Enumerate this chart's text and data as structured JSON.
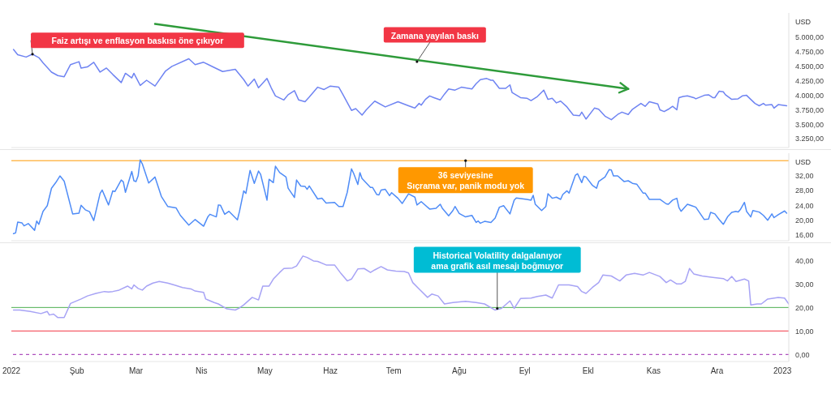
{
  "chart_data": [
    {
      "type": "line",
      "ylabel": "USD",
      "tick_labels": "y",
      "xlim": [
        "2022-01-01",
        "2023-01-04"
      ],
      "ylim": [
        3100,
        5420
      ],
      "yticks": [
        {
          "value": 3250,
          "label": "3.250,00"
        },
        {
          "value": 3500,
          "label": "3.500,00"
        },
        {
          "value": 3750,
          "label": "3.750,00"
        },
        {
          "value": 4000,
          "label": "4.000,00"
        },
        {
          "value": 4250,
          "label": "4.250,00"
        },
        {
          "value": 4500,
          "label": "4.500,00"
        },
        {
          "value": 4750,
          "label": "4.750,00"
        },
        {
          "value": 5000,
          "label": "5.000,00"
        }
      ],
      "series": [
        {
          "color": "#6f84f2",
          "x": [
            "2022-01-02",
            "2022-01-04",
            "2022-01-08",
            "2022-01-11",
            "2022-01-14",
            "2022-01-16",
            "2022-01-20",
            "2022-01-23",
            "2022-01-26",
            "2022-01-29",
            "2022-02-02",
            "2022-02-03",
            "2022-02-06",
            "2022-02-09",
            "2022-02-12",
            "2022-02-15",
            "2022-02-18",
            "2022-02-22",
            "2022-02-24",
            "2022-02-27",
            "2022-02-28",
            "2022-03-03",
            "2022-03-06",
            "2022-03-10",
            "2022-03-15",
            "2022-03-18",
            "2022-03-26",
            "2022-03-29",
            "2022-04-02",
            "2022-04-07",
            "2022-04-11",
            "2022-04-17",
            "2022-04-21",
            "2022-04-23",
            "2022-04-26",
            "2022-04-28",
            "2022-05-02",
            "2022-05-04",
            "2022-05-06",
            "2022-05-10",
            "2022-05-12",
            "2022-05-15",
            "2022-05-17",
            "2022-05-20",
            "2022-05-22",
            "2022-05-26",
            "2022-05-29",
            "2022-06-01",
            "2022-06-05",
            "2022-06-07",
            "2022-06-11",
            "2022-06-13",
            "2022-06-16",
            "2022-06-18",
            "2022-06-22",
            "2022-06-27",
            "2022-07-03",
            "2022-07-08",
            "2022-07-11",
            "2022-07-13",
            "2022-07-14",
            "2022-07-16",
            "2022-07-18",
            "2022-07-20",
            "2022-07-23",
            "2022-07-25",
            "2022-07-27",
            "2022-07-30",
            "2022-08-02",
            "2022-08-07",
            "2022-08-09",
            "2022-08-11",
            "2022-08-14",
            "2022-08-16",
            "2022-08-17",
            "2022-08-20",
            "2022-08-23",
            "2022-08-25",
            "2022-08-26",
            "2022-08-30",
            "2022-09-02",
            "2022-09-04",
            "2022-09-07",
            "2022-09-10",
            "2022-09-12",
            "2022-09-14",
            "2022-09-16",
            "2022-09-18",
            "2022-09-21",
            "2022-09-24",
            "2022-09-27",
            "2022-09-28",
            "2022-09-30",
            "2022-10-04",
            "2022-10-06",
            "2022-10-09",
            "2022-10-12",
            "2022-10-15",
            "2022-10-17",
            "2022-10-20",
            "2022-10-22",
            "2022-10-26",
            "2022-10-28",
            "2022-10-30",
            "2022-11-03",
            "2022-11-04",
            "2022-11-06",
            "2022-11-08",
            "2022-11-10",
            "2022-11-12",
            "2022-11-13",
            "2022-11-15",
            "2022-11-17",
            "2022-11-20",
            "2022-11-21",
            "2022-11-25",
            "2022-11-27",
            "2022-11-29",
            "2022-11-30",
            "2022-12-02",
            "2022-12-04",
            "2022-12-05",
            "2022-12-08",
            "2022-12-11",
            "2022-12-13",
            "2022-12-15",
            "2022-12-17",
            "2022-12-19",
            "2022-12-21",
            "2022-12-23",
            "2022-12-24",
            "2022-12-27",
            "2022-12-28",
            "2022-12-30",
            "2023-01-03"
          ],
          "values": [
            4790,
            4700,
            4660,
            4710,
            4650,
            4560,
            4400,
            4340,
            4320,
            4530,
            4580,
            4470,
            4490,
            4570,
            4400,
            4470,
            4360,
            4220,
            4380,
            4300,
            4380,
            4170,
            4260,
            4160,
            4420,
            4500,
            4630,
            4530,
            4570,
            4480,
            4410,
            4450,
            4270,
            4160,
            4280,
            4130,
            4290,
            4130,
            3990,
            3920,
            4010,
            4080,
            3920,
            3890,
            3970,
            4140,
            4100,
            4160,
            4140,
            4010,
            3740,
            3770,
            3660,
            3750,
            3900,
            3800,
            3890,
            3820,
            3780,
            3860,
            3830,
            3930,
            3990,
            3960,
            3920,
            4020,
            4110,
            4090,
            4140,
            4110,
            4200,
            4270,
            4290,
            4260,
            4260,
            4120,
            4120,
            4180,
            4050,
            3960,
            3950,
            3910,
            3980,
            4090,
            3930,
            3950,
            3870,
            3900,
            3800,
            3660,
            3650,
            3710,
            3590,
            3780,
            3760,
            3640,
            3580,
            3670,
            3710,
            3670,
            3760,
            3860,
            3810,
            3890,
            3850,
            3750,
            3720,
            3760,
            3810,
            3750,
            3960,
            3980,
            3990,
            3960,
            3940,
            4000,
            4010,
            3960,
            3960,
            4070,
            4060,
            4010,
            3930,
            3940,
            3990,
            4000,
            3930,
            3860,
            3820,
            3860,
            3830,
            3840,
            3780,
            3840,
            3820
          ]
        },
        {
          "type": "line",
          "color": "#2e9b3a",
          "x": [
            "2022-03-10",
            "2022-10-20"
          ],
          "values": [
            5230,
            4110
          ]
        }
      ],
      "annotations": [
        {
          "text": "Faiz artışı ve enflasyon baskısı öne çıkıyor",
          "x": "2022-01-11",
          "y": 4710
        },
        {
          "text": "Zamana yayılan baskı",
          "x": "2022-07-12",
          "y": 4580
        }
      ]
    },
    {
      "type": "line",
      "ylabel": "USD",
      "tick_labels": "y",
      "xlim": [
        "2022-01-01",
        "2023-01-04"
      ],
      "ylim": [
        14.5,
        38
      ],
      "yticks": [
        {
          "value": 16,
          "label": "16,00"
        },
        {
          "value": 20,
          "label": "20,00"
        },
        {
          "value": 24,
          "label": "24,00"
        },
        {
          "value": 28,
          "label": "28,00"
        },
        {
          "value": 32,
          "label": "32,00"
        }
      ],
      "ref_lines": [
        {
          "axis": "y",
          "value": 36,
          "color": "#ff9800"
        }
      ],
      "series": [
        {
          "color": "#4f8cf7",
          "x": [
            "2022-01-02",
            "2022-01-03",
            "2022-01-04",
            "2022-01-06",
            "2022-01-07",
            "2022-01-09",
            "2022-01-12",
            "2022-01-13",
            "2022-01-14",
            "2022-01-16",
            "2022-01-18",
            "2022-01-20",
            "2022-01-22",
            "2022-01-24",
            "2022-01-26",
            "2022-01-30",
            "2022-02-02",
            "2022-02-03",
            "2022-02-05",
            "2022-02-07",
            "2022-02-09",
            "2022-02-12",
            "2022-02-13",
            "2022-02-15",
            "2022-02-16",
            "2022-02-18",
            "2022-02-19",
            "2022-02-22",
            "2022-02-23",
            "2022-02-24",
            "2022-02-27",
            "2022-02-28",
            "2022-03-01",
            "2022-03-02",
            "2022-03-03",
            "2022-03-04",
            "2022-03-07",
            "2022-03-10",
            "2022-03-13",
            "2022-03-16",
            "2022-03-20",
            "2022-03-22",
            "2022-03-26",
            "2022-03-29",
            "2022-04-02",
            "2022-04-04",
            "2022-04-05",
            "2022-04-08",
            "2022-04-09",
            "2022-04-10",
            "2022-04-12",
            "2022-04-14",
            "2022-04-18",
            "2022-04-19",
            "2022-04-21",
            "2022-04-22",
            "2022-04-24",
            "2022-04-26",
            "2022-04-28",
            "2022-04-29",
            "2022-05-02",
            "2022-05-03",
            "2022-05-05",
            "2022-05-06",
            "2022-05-08",
            "2022-05-11",
            "2022-05-12",
            "2022-05-15",
            "2022-05-16",
            "2022-05-18",
            "2022-05-20",
            "2022-05-21",
            "2022-05-22",
            "2022-05-26",
            "2022-05-28",
            "2022-05-30",
            "2022-06-03",
            "2022-06-05",
            "2022-06-07",
            "2022-06-09",
            "2022-06-11",
            "2022-06-12",
            "2022-06-14",
            "2022-06-15",
            "2022-06-16",
            "2022-06-20",
            "2022-06-21",
            "2022-06-23",
            "2022-06-24",
            "2022-06-25",
            "2022-06-27",
            "2022-06-29",
            "2022-06-30",
            "2022-07-03",
            "2022-07-05",
            "2022-07-08",
            "2022-07-11",
            "2022-07-12",
            "2022-07-14",
            "2022-07-18",
            "2022-07-21",
            "2022-07-23",
            "2022-07-24",
            "2022-07-27",
            "2022-07-29",
            "2022-07-30",
            "2022-08-01",
            "2022-08-04",
            "2022-08-07",
            "2022-08-09",
            "2022-08-10",
            "2022-08-11",
            "2022-08-13",
            "2022-08-16",
            "2022-08-18",
            "2022-08-20",
            "2022-08-22",
            "2022-08-25",
            "2022-08-27",
            "2022-08-28",
            "2022-09-02",
            "2022-09-04",
            "2022-09-05",
            "2022-09-06",
            "2022-09-09",
            "2022-09-11",
            "2022-09-12",
            "2022-09-14",
            "2022-09-16",
            "2022-09-18",
            "2022-09-19",
            "2022-09-21",
            "2022-09-22",
            "2022-09-25",
            "2022-09-26",
            "2022-09-28",
            "2022-09-29",
            "2022-09-30",
            "2022-10-03",
            "2022-10-05",
            "2022-10-06",
            "2022-10-09",
            "2022-10-11",
            "2022-10-12",
            "2022-10-13",
            "2022-10-15",
            "2022-10-18",
            "2022-10-20",
            "2022-10-22",
            "2022-10-24",
            "2022-10-27",
            "2022-10-28",
            "2022-10-30",
            "2022-11-04",
            "2022-11-07",
            "2022-11-08",
            "2022-11-10",
            "2022-11-12",
            "2022-11-13",
            "2022-11-14",
            "2022-11-17",
            "2022-11-19",
            "2022-11-21",
            "2022-11-25",
            "2022-11-27",
            "2022-11-28",
            "2022-11-30",
            "2022-12-02",
            "2022-12-04",
            "2022-12-06",
            "2022-12-08",
            "2022-12-10",
            "2022-12-11",
            "2022-12-12",
            "2022-12-14",
            "2022-12-15",
            "2022-12-17",
            "2022-12-18",
            "2022-12-21",
            "2022-12-23",
            "2022-12-25",
            "2022-12-27",
            "2022-12-28",
            "2022-12-30",
            "2023-01-02",
            "2023-01-03"
          ],
          "values": [
            16.4,
            16.6,
            19.5,
            19.3,
            18.5,
            19.1,
            17.3,
            19.8,
            18.9,
            22.4,
            23.9,
            28.6,
            30.1,
            31.9,
            30.5,
            21.7,
            21.9,
            24.0,
            22.8,
            22.3,
            19.9,
            27.2,
            28.1,
            25.4,
            24.1,
            27.9,
            27.7,
            30.8,
            30.3,
            27.5,
            33.1,
            30.6,
            30.4,
            31.9,
            36.2,
            35.1,
            30.0,
            31.6,
            26.4,
            23.7,
            23.3,
            21.3,
            18.7,
            20.2,
            18.4,
            20.9,
            21.6,
            20.9,
            24.1,
            24.0,
            21.6,
            22.4,
            20.1,
            22.4,
            27.9,
            27.2,
            33.4,
            29.9,
            33.2,
            32.3,
            25.4,
            31.0,
            30.1,
            34.5,
            32.8,
            31.6,
            28.6,
            26.1,
            30.8,
            29.2,
            29.1,
            28.3,
            29.2,
            25.7,
            25.9,
            24.6,
            24.8,
            23.7,
            23.7,
            27.5,
            33.8,
            32.6,
            29.6,
            32.8,
            31.2,
            28.8,
            28.8,
            26.9,
            26.8,
            28.1,
            28.3,
            26.6,
            27.4,
            25.9,
            24.5,
            27.1,
            26.2,
            24.1,
            25.0,
            23.0,
            23.2,
            24.3,
            23.2,
            21.2,
            22.6,
            23.7,
            21.8,
            20.9,
            21.3,
            19.4,
            19.8,
            19.2,
            19.7,
            19.4,
            20.6,
            23.5,
            23.9,
            21.7,
            25.4,
            26.0,
            25.6,
            25.4,
            26.7,
            24.3,
            22.6,
            23.7,
            27.1,
            25.9,
            26.2,
            25.6,
            26.9,
            27.9,
            27.3,
            32.1,
            32.5,
            30.1,
            31.8,
            31.6,
            29.4,
            28.6,
            30.4,
            31.6,
            33.6,
            33.5,
            31.9,
            31.9,
            30.4,
            30.6,
            29.9,
            29.7,
            27.3,
            27.3,
            25.6,
            25.6,
            24.4,
            24.3,
            25.4,
            25.9,
            23.4,
            22.4,
            24.3,
            23.9,
            23.5,
            20.2,
            20.3,
            22.1,
            21.7,
            20.2,
            18.9,
            20.9,
            22.1,
            22.4,
            22.2,
            22.8,
            24.8,
            22.4,
            20.9,
            22.6,
            22.2,
            21.3,
            20.0,
            21.7,
            20.7,
            21.5,
            22.5,
            21.9
          ]
        }
      ],
      "annotations": [
        {
          "text": "36 seviyesine\nSıçrama var, panik modu yok",
          "x": "2022-08-04",
          "y": 36
        }
      ]
    },
    {
      "type": "line",
      "xlim": [
        "2022-01-01",
        "2023-01-04"
      ],
      "xticks": [
        {
          "value": "2022",
          "label": "2022"
        },
        {
          "value": "2022-02",
          "label": "Şub"
        },
        {
          "value": "2022-03",
          "label": "Mar"
        },
        {
          "value": "2022-04",
          "label": "Nis"
        },
        {
          "value": "2022-05",
          "label": "May"
        },
        {
          "value": "2022-06",
          "label": "Haz"
        },
        {
          "value": "2022-07",
          "label": "Tem"
        },
        {
          "value": "2022-08",
          "label": "Ağu"
        },
        {
          "value": "2022-09",
          "label": "Eyl"
        },
        {
          "value": "2022-10",
          "label": "Ekl"
        },
        {
          "value": "2022-11",
          "label": "Kas"
        },
        {
          "value": "2022-12",
          "label": "Ara"
        },
        {
          "value": "2023",
          "label": "2023"
        }
      ],
      "ylim": [
        -3,
        46
      ],
      "yticks": [
        {
          "value": 0,
          "label": "0,00"
        },
        {
          "value": 10,
          "label": "10,00"
        },
        {
          "value": 20,
          "label": "20,00"
        },
        {
          "value": 30,
          "label": "30,00"
        },
        {
          "value": 40,
          "label": "40,00"
        }
      ],
      "ref_lines": [
        {
          "axis": "y",
          "value": 20,
          "color": "#4caf50"
        },
        {
          "axis": "y",
          "value": 10,
          "color": "#f23645"
        },
        {
          "axis": "y",
          "value": 0,
          "color": "#9c27b0",
          "line_style": "dashed"
        }
      ],
      "series": [
        {
          "color": "#a7a3f5",
          "x": [
            "2022-01-02",
            "2022-01-05",
            "2022-01-10",
            "2022-01-15",
            "2022-01-18",
            "2022-01-19",
            "2022-01-21",
            "2022-01-23",
            "2022-01-26",
            "2022-01-29",
            "2022-02-03",
            "2022-02-06",
            "2022-02-10",
            "2022-02-14",
            "2022-02-16",
            "2022-02-18",
            "2022-02-21",
            "2022-02-25",
            "2022-02-27",
            "2022-02-28",
            "2022-03-02",
            "2022-03-04",
            "2022-03-06",
            "2022-03-09",
            "2022-03-12",
            "2022-03-16",
            "2022-03-19",
            "2022-03-23",
            "2022-03-27",
            "2022-03-29",
            "2022-04-02",
            "2022-04-03",
            "2022-04-07",
            "2022-04-09",
            "2022-04-13",
            "2022-04-17",
            "2022-04-19",
            "2022-04-21",
            "2022-04-25",
            "2022-04-28",
            "2022-04-30",
            "2022-05-03",
            "2022-05-05",
            "2022-05-08",
            "2022-05-10",
            "2022-05-14",
            "2022-05-16",
            "2022-05-19",
            "2022-05-21",
            "2022-05-24",
            "2022-05-26",
            "2022-05-30",
            "2022-06-03",
            "2022-06-06",
            "2022-06-09",
            "2022-06-11",
            "2022-06-14",
            "2022-06-17",
            "2022-06-20",
            "2022-06-22",
            "2022-06-25",
            "2022-06-28",
            "2022-07-02",
            "2022-07-06",
            "2022-07-08",
            "2022-07-10",
            "2022-07-13",
            "2022-07-17",
            "2022-07-19",
            "2022-07-22",
            "2022-07-25",
            "2022-07-29",
            "2022-08-04",
            "2022-08-09",
            "2022-08-13",
            "2022-08-18",
            "2022-08-21",
            "2022-08-25",
            "2022-08-27",
            "2022-08-30",
            "2022-09-04",
            "2022-09-07",
            "2022-09-11",
            "2022-09-14",
            "2022-09-17",
            "2022-09-22",
            "2022-09-26",
            "2022-09-28",
            "2022-09-30",
            "2022-10-03",
            "2022-10-06",
            "2022-10-08",
            "2022-10-12",
            "2022-10-16",
            "2022-10-19",
            "2022-10-23",
            "2022-10-27",
            "2022-10-30",
            "2022-11-04",
            "2022-11-07",
            "2022-11-09",
            "2022-11-12",
            "2022-11-14",
            "2022-11-16",
            "2022-11-18",
            "2022-11-20",
            "2022-11-24",
            "2022-11-29",
            "2022-12-04",
            "2022-12-06",
            "2022-12-08",
            "2022-12-10",
            "2022-12-14",
            "2022-12-16",
            "2022-12-17",
            "2022-12-20",
            "2022-12-22",
            "2022-12-25",
            "2022-12-30",
            "2023-01-02",
            "2023-01-04"
          ],
          "values": [
            18.9,
            18.9,
            18.3,
            17.4,
            18.3,
            16.8,
            17.2,
            15.7,
            15.7,
            21.7,
            23.6,
            24.9,
            26.0,
            26.8,
            26.6,
            26.8,
            27.4,
            29.1,
            27.9,
            29.6,
            28.1,
            27.4,
            29.1,
            30.4,
            31.1,
            30.4,
            29.6,
            28.5,
            27.9,
            27.0,
            26.4,
            23.6,
            22.1,
            21.5,
            19.4,
            18.9,
            19.8,
            21.1,
            24.3,
            23.2,
            29.1,
            29.1,
            32.1,
            34.9,
            36.6,
            36.8,
            37.7,
            41.9,
            41.3,
            39.8,
            39.6,
            38.1,
            38.1,
            34.5,
            31.3,
            32.1,
            36.4,
            36.6,
            34.9,
            36.0,
            37.4,
            36.0,
            35.5,
            35.3,
            34.7,
            30.6,
            27.9,
            24.3,
            25.7,
            24.9,
            21.5,
            22.1,
            22.6,
            22.1,
            21.5,
            18.9,
            19.6,
            22.8,
            19.6,
            23.8,
            24.0,
            24.7,
            25.3,
            24.0,
            29.6,
            29.6,
            28.9,
            26.8,
            26.0,
            28.5,
            30.6,
            33.8,
            33.4,
            31.3,
            33.8,
            34.5,
            33.8,
            34.9,
            33.2,
            30.6,
            31.7,
            30.0,
            30.0,
            31.1,
            36.6,
            34.3,
            33.4,
            32.8,
            32.3,
            31.3,
            33.2,
            31.1,
            32.1,
            31.3,
            21.1,
            21.5,
            21.5,
            23.6,
            24.3,
            24.0,
            21.5
          ]
        }
      ],
      "annotations": [
        {
          "text": "Historical Volatility dalgalanıyor\nama grafik asıl mesajı boğmuyor",
          "x": "2022-08-19",
          "y": 19.6
        }
      ]
    }
  ]
}
